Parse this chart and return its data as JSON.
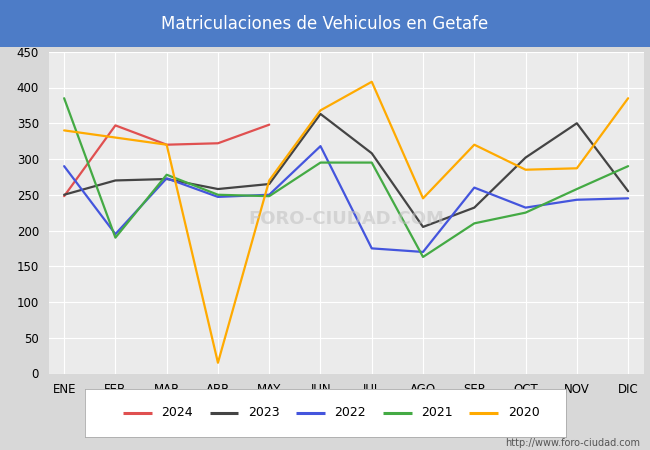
{
  "title": "Matriculaciones de Vehiculos en Getafe",
  "title_bg_color": "#4d7cc7",
  "title_text_color": "#ffffff",
  "bg_color": "#d8d8d8",
  "plot_bg_color": "#ebebeb",
  "months": [
    "ENE",
    "FEB",
    "MAR",
    "ABR",
    "MAY",
    "JUN",
    "JUL",
    "AGO",
    "SEP",
    "OCT",
    "NOV",
    "DIC"
  ],
  "series_order": [
    "2024",
    "2023",
    "2022",
    "2021",
    "2020"
  ],
  "series": {
    "2024": {
      "color": "#e05050",
      "data": [
        248,
        347,
        320,
        322,
        348,
        null,
        null,
        null,
        null,
        null,
        null,
        null
      ]
    },
    "2023": {
      "color": "#444444",
      "data": [
        250,
        270,
        272,
        258,
        265,
        363,
        308,
        205,
        232,
        302,
        350,
        255
      ]
    },
    "2022": {
      "color": "#4455dd",
      "data": [
        290,
        195,
        273,
        247,
        250,
        318,
        175,
        170,
        260,
        232,
        243,
        245
      ]
    },
    "2021": {
      "color": "#44aa44",
      "data": [
        385,
        190,
        278,
        250,
        248,
        295,
        295,
        163,
        210,
        225,
        258,
        290
      ]
    },
    "2020": {
      "color": "#ffaa00",
      "data": [
        340,
        330,
        320,
        15,
        270,
        368,
        408,
        245,
        320,
        285,
        287,
        385
      ]
    }
  },
  "ylim": [
    0,
    450
  ],
  "yticks": [
    0,
    50,
    100,
    150,
    200,
    250,
    300,
    350,
    400,
    450
  ],
  "url": "http://www.foro-ciudad.com"
}
